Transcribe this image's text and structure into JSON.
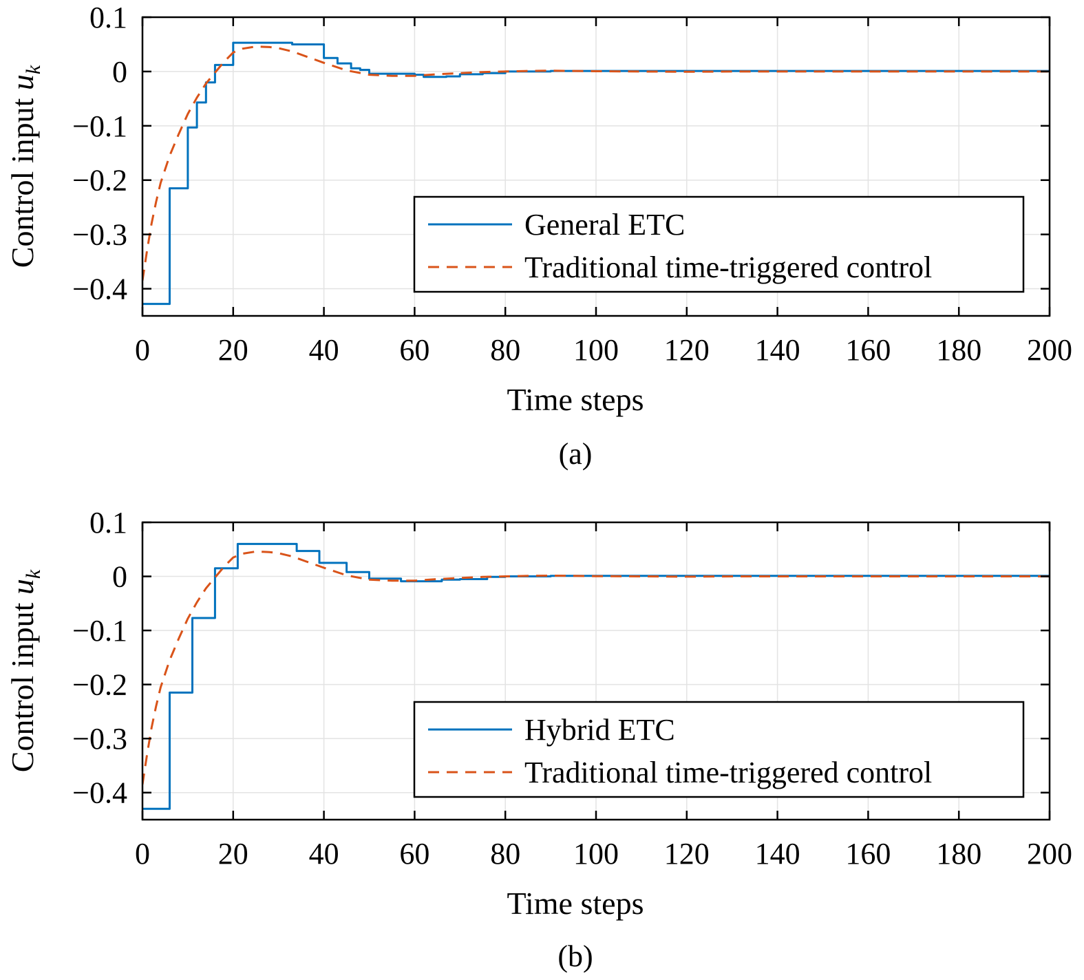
{
  "chart_data": [
    {
      "type": "line",
      "caption": "(a)",
      "xlabel": "Time steps",
      "ylabel": "Control input ",
      "ylabel_symbol": "u",
      "ylabel_subscript": "k",
      "xlim": [
        0,
        200
      ],
      "ylim": [
        -0.45,
        0.1
      ],
      "xticks": [
        0,
        20,
        40,
        60,
        80,
        100,
        120,
        140,
        160,
        180,
        200
      ],
      "xtick_labels": [
        "0",
        "20",
        "40",
        "60",
        "80",
        "100",
        "120",
        "140",
        "160",
        "180",
        "200"
      ],
      "yticks": [
        0.1,
        0,
        -0.1,
        -0.2,
        -0.3,
        -0.4
      ],
      "ytick_labels": [
        "0.1",
        "0",
        "−0.1",
        "−0.2",
        "−0.3",
        "−0.4"
      ],
      "grid": true,
      "legend_position": "lower-right",
      "colors": {
        "event_triggered": "#0072BD",
        "time_triggered": "#D95319"
      },
      "series": [
        {
          "name": "General ETC",
          "style": "solid",
          "step": true,
          "x": [
            0,
            5,
            6,
            9,
            10,
            11,
            12,
            13,
            14,
            15,
            16,
            18,
            20,
            25,
            30,
            33,
            35,
            38,
            40,
            42,
            43,
            45,
            46,
            48,
            50,
            55,
            60,
            62,
            65,
            67,
            70,
            75,
            80,
            90,
            100,
            200
          ],
          "y": [
            -0.428,
            -0.428,
            -0.215,
            -0.215,
            -0.103,
            -0.103,
            -0.057,
            -0.057,
            -0.02,
            -0.02,
            0.012,
            0.012,
            0.053,
            0.053,
            0.053,
            0.05,
            0.05,
            0.05,
            0.025,
            0.025,
            0.015,
            0.015,
            0.006,
            0.003,
            -0.004,
            -0.004,
            -0.006,
            -0.01,
            -0.01,
            -0.009,
            -0.005,
            -0.003,
            0.0,
            0.001,
            0.001,
            0.0
          ]
        },
        {
          "name": "Traditional time-triggered control",
          "style": "dashed",
          "step": false,
          "x": [
            0,
            1,
            2,
            3,
            4,
            6,
            8,
            10,
            12,
            14,
            16,
            18,
            20,
            22,
            25,
            28,
            30,
            33,
            36,
            40,
            45,
            50,
            55,
            60,
            65,
            70,
            75,
            80,
            85,
            90,
            95,
            100,
            110,
            120,
            130,
            140,
            160,
            200
          ],
          "y": [
            -0.385,
            -0.33,
            -0.28,
            -0.24,
            -0.205,
            -0.155,
            -0.115,
            -0.078,
            -0.048,
            -0.022,
            -0.002,
            0.018,
            0.035,
            0.042,
            0.046,
            0.045,
            0.043,
            0.037,
            0.028,
            0.016,
            0.002,
            -0.006,
            -0.008,
            -0.008,
            -0.005,
            -0.003,
            -0.001,
            0.0,
            0.001,
            0.0015,
            0.001,
            0.0005,
            0.0,
            -0.0005,
            0.0,
            0.0,
            0.0,
            0.0
          ]
        }
      ]
    },
    {
      "type": "line",
      "caption": "(b)",
      "xlabel": "Time steps",
      "ylabel": "Control input ",
      "ylabel_symbol": "u",
      "ylabel_subscript": "k",
      "xlim": [
        0,
        200
      ],
      "ylim": [
        -0.45,
        0.1
      ],
      "xticks": [
        0,
        20,
        40,
        60,
        80,
        100,
        120,
        140,
        160,
        180,
        200
      ],
      "xtick_labels": [
        "0",
        "20",
        "40",
        "60",
        "80",
        "100",
        "120",
        "140",
        "160",
        "180",
        "200"
      ],
      "yticks": [
        0.1,
        0,
        -0.1,
        -0.2,
        -0.3,
        -0.4
      ],
      "ytick_labels": [
        "0.1",
        "0",
        "−0.1",
        "−0.2",
        "−0.3",
        "−0.4"
      ],
      "grid": true,
      "legend_position": "lower-right",
      "colors": {
        "event_triggered": "#0072BD",
        "time_triggered": "#D95319"
      },
      "series": [
        {
          "name": "Hybrid ETC",
          "style": "solid",
          "step": true,
          "x": [
            0,
            5,
            6,
            10,
            11,
            15,
            16,
            20,
            21,
            25,
            30,
            33,
            34,
            38,
            39,
            44,
            45,
            49,
            50,
            56,
            57,
            62,
            66,
            70,
            76,
            80,
            90,
            100,
            200
          ],
          "y": [
            -0.43,
            -0.43,
            -0.215,
            -0.215,
            -0.077,
            -0.077,
            0.015,
            0.015,
            0.06,
            0.06,
            0.06,
            0.06,
            0.047,
            0.047,
            0.025,
            0.025,
            0.008,
            0.008,
            -0.004,
            -0.004,
            -0.009,
            -0.009,
            -0.006,
            -0.005,
            -0.001,
            0.0,
            0.001,
            0.001,
            0.0
          ]
        },
        {
          "name": "Traditional time-triggered control",
          "style": "dashed",
          "step": false,
          "x": [
            0,
            1,
            2,
            3,
            4,
            6,
            8,
            10,
            12,
            14,
            16,
            18,
            20,
            22,
            25,
            28,
            30,
            33,
            36,
            40,
            45,
            50,
            55,
            60,
            65,
            70,
            75,
            80,
            85,
            90,
            95,
            100,
            110,
            120,
            130,
            140,
            160,
            200
          ],
          "y": [
            -0.385,
            -0.33,
            -0.28,
            -0.24,
            -0.205,
            -0.155,
            -0.115,
            -0.078,
            -0.048,
            -0.022,
            -0.002,
            0.018,
            0.035,
            0.042,
            0.046,
            0.045,
            0.043,
            0.037,
            0.028,
            0.016,
            0.002,
            -0.006,
            -0.008,
            -0.008,
            -0.005,
            -0.003,
            -0.001,
            0.0,
            0.001,
            0.0015,
            0.001,
            0.0005,
            0.0,
            -0.0005,
            0.0,
            0.0,
            0.0,
            0.0
          ]
        }
      ]
    }
  ]
}
